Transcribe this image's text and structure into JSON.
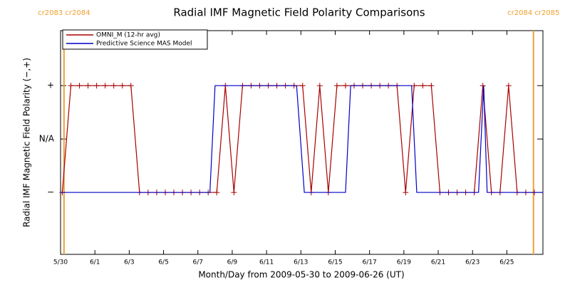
{
  "chart_data": {
    "type": "line",
    "title": "Radial IMF Magnetic Field Polarity Comparisons",
    "x_label": "Month/Day from 2009-05-30 to 2009-06-26 (UT)",
    "y_label": "Radial IMF Magnetic Field Polarity (−,+)",
    "xlim": [
      0,
      28.1
    ],
    "ylim": [
      -2.16,
      2.03
    ],
    "xticks": [
      {
        "value": 0,
        "label": "5/30"
      },
      {
        "value": 2,
        "label": "6/1"
      },
      {
        "value": 4,
        "label": "6/3"
      },
      {
        "value": 6,
        "label": "6/5"
      },
      {
        "value": 8,
        "label": "6/7"
      },
      {
        "value": 10,
        "label": "6/9"
      },
      {
        "value": 12,
        "label": "6/11"
      },
      {
        "value": 14,
        "label": "6/13"
      },
      {
        "value": 16,
        "label": "6/15"
      },
      {
        "value": 18,
        "label": "6/17"
      },
      {
        "value": 20,
        "label": "6/19"
      },
      {
        "value": 22,
        "label": "6/21"
      },
      {
        "value": 24,
        "label": "6/23"
      },
      {
        "value": 26,
        "label": "6/25"
      }
    ],
    "yticks": [
      {
        "value": -1,
        "label": "−"
      },
      {
        "value": 0,
        "label": "N/A"
      },
      {
        "value": 1,
        "label": "+"
      }
    ],
    "legend": "upper left",
    "annotations": [
      {
        "x": 0.2,
        "text": "cr2083 cr2084",
        "color": "#f0a030"
      },
      {
        "x": 27.55,
        "text": "cr2084 cr2085",
        "color": "#f0a030"
      }
    ],
    "series": [
      {
        "name": "OMNI_M (12-hr avg)",
        "color": "#a80000",
        "marker": "+",
        "x": [
          0.1,
          0.6,
          1.1,
          1.6,
          2.1,
          2.6,
          3.1,
          3.6,
          4.1,
          4.6,
          5.1,
          5.6,
          6.1,
          6.6,
          7.1,
          7.6,
          8.1,
          8.6,
          9.1,
          9.6,
          10.1,
          10.6,
          11.1,
          11.6,
          12.1,
          12.6,
          13.1,
          13.6,
          14.1,
          14.6,
          15.1,
          15.6,
          16.1,
          16.6,
          17.1,
          17.6,
          18.1,
          18.6,
          19.1,
          19.6,
          20.1,
          20.6,
          21.1,
          21.6,
          22.1,
          22.6,
          23.1,
          23.6,
          24.1,
          24.6,
          25.1,
          25.6,
          26.1,
          26.6,
          27.1,
          27.6
        ],
        "values": [
          -1,
          1,
          1,
          1,
          1,
          1,
          1,
          1,
          1,
          -1,
          -1,
          -1,
          -1,
          -1,
          -1,
          -1,
          -1,
          -1,
          -1,
          1,
          -1,
          1,
          1,
          1,
          1,
          1,
          1,
          1,
          1,
          -1,
          1,
          -1,
          1,
          1,
          1,
          1,
          1,
          1,
          1,
          1,
          -1,
          1,
          1,
          1,
          -1,
          -1,
          -1,
          -1,
          -1,
          1,
          -1,
          -1,
          1,
          -1,
          -1,
          -1
        ]
      },
      {
        "name": "Predictive Science MAS Model",
        "color": "#0000c8",
        "x": [
          0,
          8.7,
          9.0,
          13.75,
          14.2,
          16.6,
          16.9,
          20.45,
          20.75,
          24.35,
          24.65,
          24.85,
          28.1
        ],
        "values": [
          -1,
          -1,
          1,
          1,
          -1,
          -1,
          1,
          1,
          -1,
          -1,
          1,
          -1,
          -1
        ]
      }
    ]
  }
}
